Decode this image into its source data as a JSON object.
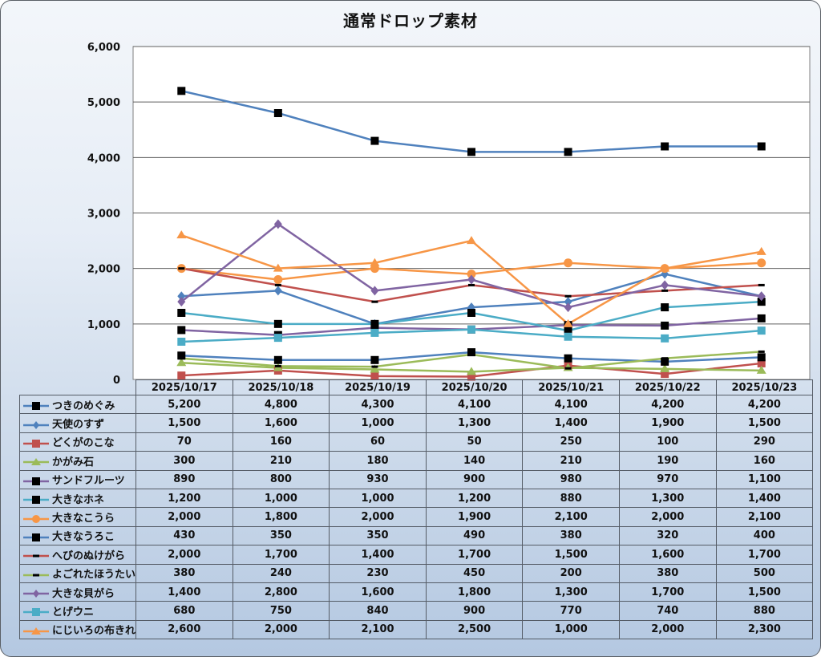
{
  "chart_data": {
    "type": "line",
    "title": "通常ドロップ素材",
    "xlabel": "",
    "ylabel": "",
    "ylim": [
      0,
      6000
    ],
    "yticks": [
      0,
      1000,
      2000,
      3000,
      4000,
      5000,
      6000
    ],
    "ytick_labels": [
      "0",
      "1,000",
      "2,000",
      "3,000",
      "4,000",
      "5,000",
      "6,000"
    ],
    "grid": true,
    "legend": "data-table-left",
    "categories": [
      "2025/10/17",
      "2025/10/18",
      "2025/10/19",
      "2025/10/20",
      "2025/10/21",
      "2025/10/22",
      "2025/10/23"
    ],
    "series": [
      {
        "name": "つきのめぐみ",
        "color": "#4f81bd",
        "marker": "square-black",
        "values": [
          5200,
          4800,
          4300,
          4100,
          4100,
          4200,
          4200
        ]
      },
      {
        "name": "天使のすず",
        "color": "#4f81bd",
        "marker": "diamond",
        "values": [
          1500,
          1600,
          1000,
          1300,
          1400,
          1900,
          1500
        ]
      },
      {
        "name": "どくがのこな",
        "color": "#c0504d",
        "marker": "square",
        "values": [
          70,
          160,
          60,
          50,
          250,
          100,
          290
        ]
      },
      {
        "name": "かがみ石",
        "color": "#9bbb59",
        "marker": "triangle",
        "values": [
          300,
          210,
          180,
          140,
          210,
          190,
          160
        ]
      },
      {
        "name": "サンドフルーツ",
        "color": "#8064a2",
        "marker": "square-black",
        "values": [
          890,
          800,
          930,
          900,
          980,
          970,
          1100
        ]
      },
      {
        "name": "大きなホネ",
        "color": "#4bacc6",
        "marker": "square-black",
        "values": [
          1200,
          1000,
          1000,
          1200,
          880,
          1300,
          1400
        ]
      },
      {
        "name": "大きなこうら",
        "color": "#f79646",
        "marker": "circle",
        "values": [
          2000,
          1800,
          2000,
          1900,
          2100,
          2000,
          2100
        ]
      },
      {
        "name": "大きなうろこ",
        "color": "#4f81bd",
        "marker": "square-black",
        "values": [
          430,
          350,
          350,
          490,
          380,
          320,
          400
        ]
      },
      {
        "name": "へびのぬけがら",
        "color": "#c0504d",
        "marker": "dash-black",
        "values": [
          2000,
          1700,
          1400,
          1700,
          1500,
          1600,
          1700
        ]
      },
      {
        "name": "よごれたほうたい",
        "color": "#9bbb59",
        "marker": "dash-black",
        "values": [
          380,
          240,
          230,
          450,
          200,
          380,
          500
        ]
      },
      {
        "name": "大きな貝がら",
        "color": "#8064a2",
        "marker": "diamond",
        "values": [
          1400,
          2800,
          1600,
          1800,
          1300,
          1700,
          1500
        ]
      },
      {
        "name": "とげウニ",
        "color": "#4bacc6",
        "marker": "square",
        "values": [
          680,
          750,
          840,
          900,
          770,
          740,
          880
        ]
      },
      {
        "name": "にじいろの布きれ",
        "color": "#f79646",
        "marker": "triangle",
        "values": [
          2600,
          2000,
          2100,
          2500,
          1000,
          2000,
          2300
        ]
      }
    ]
  },
  "table": {
    "rows_display": [
      [
        "5,200",
        "4,800",
        "4,300",
        "4,100",
        "4,100",
        "4,200",
        "4,200"
      ],
      [
        "1,500",
        "1,600",
        "1,000",
        "1,300",
        "1,400",
        "1,900",
        "1,500"
      ],
      [
        "70",
        "160",
        "60",
        "50",
        "250",
        "100",
        "290"
      ],
      [
        "300",
        "210",
        "180",
        "140",
        "210",
        "190",
        "160"
      ],
      [
        "890",
        "800",
        "930",
        "900",
        "980",
        "970",
        "1,100"
      ],
      [
        "1,200",
        "1,000",
        "1,000",
        "1,200",
        "880",
        "1,300",
        "1,400"
      ],
      [
        "2,000",
        "1,800",
        "2,000",
        "1,900",
        "2,100",
        "2,000",
        "2,100"
      ],
      [
        "430",
        "350",
        "350",
        "490",
        "380",
        "320",
        "400"
      ],
      [
        "2,000",
        "1,700",
        "1,400",
        "1,700",
        "1,500",
        "1,600",
        "1,700"
      ],
      [
        "380",
        "240",
        "230",
        "450",
        "200",
        "380",
        "500"
      ],
      [
        "1,400",
        "2,800",
        "1,600",
        "1,800",
        "1,300",
        "1,700",
        "1,500"
      ],
      [
        "680",
        "750",
        "840",
        "900",
        "770",
        "740",
        "880"
      ],
      [
        "2,600",
        "2,000",
        "2,100",
        "2,500",
        "1,000",
        "2,000",
        "2,300"
      ]
    ]
  }
}
